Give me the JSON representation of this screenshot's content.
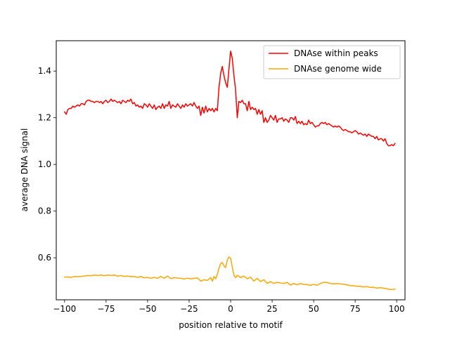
{
  "chart_data": {
    "type": "line",
    "title": "",
    "xlabel": "position relative to motif",
    "ylabel": "average DNA signal",
    "xlim": [
      -105,
      105
    ],
    "ylim": [
      0.42,
      1.53
    ],
    "xticks": [
      -100,
      -75,
      -50,
      -25,
      0,
      25,
      50,
      75,
      100
    ],
    "yticks": [
      0.6,
      0.8,
      1.0,
      1.2,
      1.4
    ],
    "grid": false,
    "legend": "top-right",
    "series": [
      {
        "name": "DNAse within peaks",
        "color": "#ff0000",
        "points": [
          [
            -100,
            1.225
          ],
          [
            -99,
            1.215
          ],
          [
            -98,
            1.235
          ],
          [
            -97,
            1.24
          ],
          [
            -96,
            1.24
          ],
          [
            -95,
            1.25
          ],
          [
            -94,
            1.245
          ],
          [
            -93,
            1.25
          ],
          [
            -92,
            1.255
          ],
          [
            -91,
            1.25
          ],
          [
            -90,
            1.26
          ],
          [
            -89,
            1.26
          ],
          [
            -88,
            1.255
          ],
          [
            -87,
            1.27
          ],
          [
            -86,
            1.275
          ],
          [
            -85,
            1.275
          ],
          [
            -84,
            1.27
          ],
          [
            -83,
            1.27
          ],
          [
            -82,
            1.265
          ],
          [
            -81,
            1.27
          ],
          [
            -80,
            1.27
          ],
          [
            -79,
            1.265
          ],
          [
            -78,
            1.27
          ],
          [
            -77,
            1.26
          ],
          [
            -76,
            1.27
          ],
          [
            -75,
            1.275
          ],
          [
            -74,
            1.265
          ],
          [
            -73,
            1.27
          ],
          [
            -72,
            1.28
          ],
          [
            -71,
            1.27
          ],
          [
            -70,
            1.275
          ],
          [
            -69,
            1.27
          ],
          [
            -68,
            1.265
          ],
          [
            -67,
            1.27
          ],
          [
            -66,
            1.26
          ],
          [
            -65,
            1.275
          ],
          [
            -64,
            1.27
          ],
          [
            -63,
            1.265
          ],
          [
            -62,
            1.275
          ],
          [
            -61,
            1.27
          ],
          [
            -60,
            1.28
          ],
          [
            -59,
            1.26
          ],
          [
            -58,
            1.265
          ],
          [
            -57,
            1.25
          ],
          [
            -56,
            1.255
          ],
          [
            -55,
            1.245
          ],
          [
            -54,
            1.25
          ],
          [
            -53,
            1.24
          ],
          [
            -52,
            1.26
          ],
          [
            -51,
            1.255
          ],
          [
            -50,
            1.245
          ],
          [
            -49,
            1.26
          ],
          [
            -48,
            1.25
          ],
          [
            -47,
            1.24
          ],
          [
            -46,
            1.255
          ],
          [
            -45,
            1.235
          ],
          [
            -44,
            1.245
          ],
          [
            -43,
            1.25
          ],
          [
            -42,
            1.24
          ],
          [
            -41,
            1.26
          ],
          [
            -40,
            1.24
          ],
          [
            -39,
            1.255
          ],
          [
            -38,
            1.25
          ],
          [
            -37,
            1.27
          ],
          [
            -36,
            1.24
          ],
          [
            -35,
            1.255
          ],
          [
            -34,
            1.25
          ],
          [
            -33,
            1.245
          ],
          [
            -32,
            1.26
          ],
          [
            -31,
            1.25
          ],
          [
            -30,
            1.24
          ],
          [
            -29,
            1.255
          ],
          [
            -28,
            1.245
          ],
          [
            -27,
            1.26
          ],
          [
            -26,
            1.25
          ],
          [
            -25,
            1.255
          ],
          [
            -24,
            1.26
          ],
          [
            -23,
            1.25
          ],
          [
            -22,
            1.265
          ],
          [
            -21,
            1.25
          ],
          [
            -20,
            1.24
          ],
          [
            -19,
            1.25
          ],
          [
            -18,
            1.21
          ],
          [
            -17,
            1.245
          ],
          [
            -16,
            1.22
          ],
          [
            -15,
            1.25
          ],
          [
            -14,
            1.225
          ],
          [
            -13,
            1.24
          ],
          [
            -12,
            1.23
          ],
          [
            -11,
            1.24
          ],
          [
            -10,
            1.225
          ],
          [
            -9,
            1.24
          ],
          [
            -8,
            1.23
          ],
          [
            -7,
            1.33
          ],
          [
            -6,
            1.39
          ],
          [
            -5,
            1.42
          ],
          [
            -4,
            1.38
          ],
          [
            -3,
            1.35
          ],
          [
            -2,
            1.33
          ],
          [
            -1,
            1.41
          ],
          [
            0,
            1.485
          ],
          [
            1,
            1.455
          ],
          [
            2,
            1.38
          ],
          [
            3,
            1.32
          ],
          [
            4,
            1.2
          ],
          [
            5,
            1.27
          ],
          [
            6,
            1.265
          ],
          [
            7,
            1.275
          ],
          [
            8,
            1.26
          ],
          [
            9,
            1.26
          ],
          [
            10,
            1.23
          ],
          [
            11,
            1.27
          ],
          [
            12,
            1.235
          ],
          [
            13,
            1.245
          ],
          [
            14,
            1.235
          ],
          [
            15,
            1.24
          ],
          [
            16,
            1.215
          ],
          [
            17,
            1.235
          ],
          [
            18,
            1.215
          ],
          [
            19,
            1.23
          ],
          [
            20,
            1.18
          ],
          [
            21,
            1.2
          ],
          [
            22,
            1.18
          ],
          [
            23,
            1.19
          ],
          [
            24,
            1.21
          ],
          [
            25,
            1.2
          ],
          [
            26,
            1.19
          ],
          [
            27,
            1.21
          ],
          [
            28,
            1.18
          ],
          [
            29,
            1.195
          ],
          [
            30,
            1.195
          ],
          [
            31,
            1.2
          ],
          [
            32,
            1.185
          ],
          [
            33,
            1.195
          ],
          [
            34,
            1.19
          ],
          [
            35,
            1.18
          ],
          [
            36,
            1.2
          ],
          [
            37,
            1.2
          ],
          [
            38,
            1.19
          ],
          [
            39,
            1.205
          ],
          [
            40,
            1.175
          ],
          [
            41,
            1.185
          ],
          [
            42,
            1.175
          ],
          [
            43,
            1.185
          ],
          [
            44,
            1.17
          ],
          [
            45,
            1.175
          ],
          [
            46,
            1.17
          ],
          [
            47,
            1.19
          ],
          [
            48,
            1.175
          ],
          [
            49,
            1.18
          ],
          [
            50,
            1.17
          ],
          [
            51,
            1.16
          ],
          [
            52,
            1.165
          ],
          [
            53,
            1.165
          ],
          [
            54,
            1.175
          ],
          [
            55,
            1.18
          ],
          [
            56,
            1.175
          ],
          [
            57,
            1.18
          ],
          [
            58,
            1.17
          ],
          [
            59,
            1.175
          ],
          [
            60,
            1.17
          ],
          [
            61,
            1.165
          ],
          [
            62,
            1.16
          ],
          [
            63,
            1.165
          ],
          [
            64,
            1.16
          ],
          [
            65,
            1.165
          ],
          [
            66,
            1.16
          ],
          [
            67,
            1.15
          ],
          [
            68,
            1.145
          ],
          [
            69,
            1.15
          ],
          [
            70,
            1.145
          ],
          [
            71,
            1.14
          ],
          [
            72,
            1.14
          ],
          [
            73,
            1.135
          ],
          [
            74,
            1.14
          ],
          [
            75,
            1.145
          ],
          [
            76,
            1.14
          ],
          [
            77,
            1.13
          ],
          [
            78,
            1.135
          ],
          [
            79,
            1.13
          ],
          [
            80,
            1.125
          ],
          [
            81,
            1.13
          ],
          [
            82,
            1.12
          ],
          [
            83,
            1.13
          ],
          [
            84,
            1.125
          ],
          [
            85,
            1.12
          ],
          [
            86,
            1.12
          ],
          [
            87,
            1.11
          ],
          [
            88,
            1.12
          ],
          [
            89,
            1.105
          ],
          [
            90,
            1.11
          ],
          [
            91,
            1.11
          ],
          [
            92,
            1.1
          ],
          [
            93,
            1.11
          ],
          [
            94,
            1.09
          ],
          [
            95,
            1.08
          ],
          [
            96,
            1.08
          ],
          [
            97,
            1.085
          ],
          [
            98,
            1.08
          ],
          [
            99,
            1.09
          ]
        ]
      },
      {
        "name": "DNAse genome wide",
        "color": "#ffa500",
        "points": [
          [
            -100,
            0.517
          ],
          [
            -98,
            0.518
          ],
          [
            -96,
            0.516
          ],
          [
            -94,
            0.52
          ],
          [
            -92,
            0.519
          ],
          [
            -90,
            0.52
          ],
          [
            -88,
            0.522
          ],
          [
            -86,
            0.524
          ],
          [
            -84,
            0.523
          ],
          [
            -82,
            0.526
          ],
          [
            -80,
            0.524
          ],
          [
            -78,
            0.526
          ],
          [
            -76,
            0.523
          ],
          [
            -74,
            0.526
          ],
          [
            -72,
            0.524
          ],
          [
            -70,
            0.526
          ],
          [
            -68,
            0.521
          ],
          [
            -66,
            0.524
          ],
          [
            -64,
            0.52
          ],
          [
            -62,
            0.522
          ],
          [
            -60,
            0.519
          ],
          [
            -58,
            0.52
          ],
          [
            -56,
            0.516
          ],
          [
            -54,
            0.52
          ],
          [
            -52,
            0.514
          ],
          [
            -50,
            0.516
          ],
          [
            -48,
            0.512
          ],
          [
            -46,
            0.516
          ],
          [
            -44,
            0.512
          ],
          [
            -42,
            0.52
          ],
          [
            -40,
            0.512
          ],
          [
            -38,
            0.522
          ],
          [
            -36,
            0.511
          ],
          [
            -34,
            0.515
          ],
          [
            -32,
            0.513
          ],
          [
            -30,
            0.512
          ],
          [
            -28,
            0.509
          ],
          [
            -26,
            0.513
          ],
          [
            -24,
            0.51
          ],
          [
            -22,
            0.512
          ],
          [
            -20,
            0.514
          ],
          [
            -18,
            0.5
          ],
          [
            -16,
            0.506
          ],
          [
            -14,
            0.503
          ],
          [
            -12,
            0.515
          ],
          [
            -11,
            0.5
          ],
          [
            -10,
            0.52
          ],
          [
            -9,
            0.51
          ],
          [
            -8,
            0.53
          ],
          [
            -7,
            0.555
          ],
          [
            -6,
            0.575
          ],
          [
            -5,
            0.58
          ],
          [
            -4,
            0.565
          ],
          [
            -3,
            0.558
          ],
          [
            -2,
            0.59
          ],
          [
            -1,
            0.603
          ],
          [
            0,
            0.598
          ],
          [
            1,
            0.56
          ],
          [
            2,
            0.525
          ],
          [
            3,
            0.515
          ],
          [
            4,
            0.525
          ],
          [
            6,
            0.515
          ],
          [
            8,
            0.522
          ],
          [
            10,
            0.51
          ],
          [
            12,
            0.517
          ],
          [
            14,
            0.5
          ],
          [
            16,
            0.512
          ],
          [
            18,
            0.498
          ],
          [
            20,
            0.506
          ],
          [
            22,
            0.49
          ],
          [
            24,
            0.498
          ],
          [
            26,
            0.49
          ],
          [
            28,
            0.495
          ],
          [
            30,
            0.492
          ],
          [
            32,
            0.49
          ],
          [
            34,
            0.495
          ],
          [
            36,
            0.483
          ],
          [
            38,
            0.49
          ],
          [
            40,
            0.484
          ],
          [
            42,
            0.49
          ],
          [
            44,
            0.486
          ],
          [
            46,
            0.485
          ],
          [
            48,
            0.482
          ],
          [
            50,
            0.486
          ],
          [
            52,
            0.482
          ],
          [
            54,
            0.49
          ],
          [
            56,
            0.495
          ],
          [
            58,
            0.494
          ],
          [
            60,
            0.49
          ],
          [
            62,
            0.488
          ],
          [
            64,
            0.49
          ],
          [
            66,
            0.488
          ],
          [
            68,
            0.487
          ],
          [
            70,
            0.484
          ],
          [
            72,
            0.481
          ],
          [
            74,
            0.48
          ],
          [
            76,
            0.478
          ],
          [
            78,
            0.478
          ],
          [
            80,
            0.475
          ],
          [
            82,
            0.477
          ],
          [
            84,
            0.473
          ],
          [
            86,
            0.474
          ],
          [
            88,
            0.47
          ],
          [
            90,
            0.472
          ],
          [
            92,
            0.47
          ],
          [
            94,
            0.467
          ],
          [
            96,
            0.464
          ],
          [
            98,
            0.465
          ],
          [
            99,
            0.466
          ]
        ]
      }
    ]
  }
}
